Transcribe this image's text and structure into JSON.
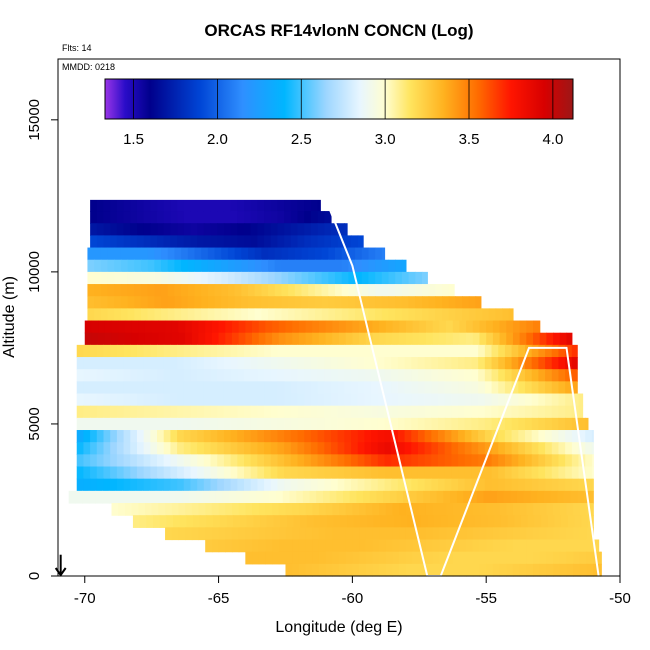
{
  "chart_data": {
    "type": "heatmap",
    "title": "ORCAS RF14vlonN CONCN (Log)",
    "xlabel": "Longitude (deg E)",
    "ylabel": "Altitude (m)",
    "xlim": [
      -71,
      -50
    ],
    "ylim": [
      0,
      17000
    ],
    "x_ticks": [
      -70,
      -65,
      -60,
      -55,
      -50
    ],
    "y_ticks": [
      0,
      5000,
      10000,
      15000
    ],
    "notes": {
      "flights": "Flts: 14",
      "date": "MMDD: 0218"
    },
    "colorbar": {
      "range": [
        1.33,
        4.12
      ],
      "ticks": [
        1.5,
        2.0,
        2.5,
        3.0,
        3.5,
        4.0
      ],
      "stops": [
        {
          "v": 1.33,
          "color": "#9a35e8"
        },
        {
          "v": 1.45,
          "color": "#2a0cc8"
        },
        {
          "v": 1.6,
          "color": "#00008c"
        },
        {
          "v": 1.9,
          "color": "#0046d6"
        },
        {
          "v": 2.15,
          "color": "#2f8fff"
        },
        {
          "v": 2.4,
          "color": "#00b6ff"
        },
        {
          "v": 2.65,
          "color": "#9ed6ff"
        },
        {
          "v": 2.85,
          "color": "#e8f6ff"
        },
        {
          "v": 3.0,
          "color": "#fffed0"
        },
        {
          "v": 3.15,
          "color": "#ffe45e"
        },
        {
          "v": 3.35,
          "color": "#ffb21f"
        },
        {
          "v": 3.55,
          "color": "#ff6d00"
        },
        {
          "v": 3.75,
          "color": "#ff1500"
        },
        {
          "v": 3.95,
          "color": "#d70000"
        },
        {
          "v": 4.12,
          "color": "#9d1717"
        }
      ]
    },
    "layers": [
      {
        "alt": 12200,
        "x0": -69.8,
        "x1": -61.2,
        "values": [
          1.6,
          1.55,
          1.5,
          1.5,
          1.55,
          1.6
        ]
      },
      {
        "alt": 11800,
        "x0": -69.8,
        "x1": -60.8,
        "values": [
          1.6,
          1.55,
          1.5,
          1.5,
          1.55,
          1.65
        ]
      },
      {
        "alt": 11400,
        "x0": -69.8,
        "x1": -60.2,
        "values": [
          1.7,
          1.6,
          1.55,
          1.6,
          1.7,
          1.8
        ]
      },
      {
        "alt": 11000,
        "x0": -69.8,
        "x1": -59.6,
        "values": [
          1.9,
          1.8,
          1.7,
          1.65,
          1.8,
          1.9
        ]
      },
      {
        "alt": 10600,
        "x0": -69.9,
        "x1": -58.8,
        "values": [
          2.2,
          2.2,
          2.0,
          1.8,
          1.9,
          2.1
        ]
      },
      {
        "alt": 10200,
        "x0": -69.9,
        "x1": -58.0,
        "values": [
          2.6,
          2.5,
          2.3,
          2.1,
          2.1,
          2.3
        ]
      },
      {
        "alt": 9800,
        "x0": -69.9,
        "x1": -57.2,
        "values": [
          3.0,
          2.95,
          2.8,
          2.6,
          2.4,
          2.6
        ]
      },
      {
        "alt": 9400,
        "x0": -69.9,
        "x1": -56.2,
        "values": [
          3.35,
          3.4,
          3.3,
          3.1,
          2.9,
          3.0
        ]
      },
      {
        "alt": 9000,
        "x0": -69.9,
        "x1": -55.2,
        "values": [
          3.3,
          3.4,
          3.3,
          3.25,
          3.3,
          3.4
        ]
      },
      {
        "alt": 8600,
        "x0": -69.9,
        "x1": -54.0,
        "values": [
          3.2,
          3.1,
          3.0,
          3.1,
          3.2,
          3.3
        ]
      },
      {
        "alt": 8200,
        "x0": -70.0,
        "x1": -53.0,
        "values": [
          3.95,
          3.9,
          3.6,
          3.4,
          3.2,
          3.5
        ]
      },
      {
        "alt": 7800,
        "x0": -70.0,
        "x1": -51.8,
        "values": [
          4.0,
          3.9,
          3.45,
          3.2,
          3.1,
          3.9
        ]
      },
      {
        "alt": 7400,
        "x0": -70.3,
        "x1": -51.6,
        "values": [
          3.2,
          3.1,
          3.0,
          3.0,
          3.0,
          3.7
        ]
      },
      {
        "alt": 7000,
        "x0": -70.3,
        "x1": -51.6,
        "values": [
          2.8,
          2.8,
          2.9,
          3.0,
          3.1,
          3.9
        ]
      },
      {
        "alt": 6600,
        "x0": -70.3,
        "x1": -51.6,
        "values": [
          2.85,
          2.8,
          2.85,
          2.9,
          3.0,
          3.6
        ]
      },
      {
        "alt": 6200,
        "x0": -70.3,
        "x1": -51.6,
        "values": [
          2.8,
          2.8,
          2.8,
          2.85,
          2.95,
          3.4
        ]
      },
      {
        "alt": 5800,
        "x0": -70.3,
        "x1": -51.4,
        "values": [
          2.85,
          2.8,
          2.8,
          2.85,
          2.9,
          3.1
        ]
      },
      {
        "alt": 5400,
        "x0": -70.3,
        "x1": -51.4,
        "values": [
          3.1,
          3.05,
          3.0,
          2.95,
          3.0,
          3.1
        ]
      },
      {
        "alt": 5000,
        "x0": -70.3,
        "x1": -51.2,
        "values": [
          2.9,
          2.9,
          2.95,
          3.0,
          3.1,
          3.3
        ]
      },
      {
        "alt": 4600,
        "x0": -70.3,
        "x1": -51.0,
        "values": [
          2.3,
          3.2,
          3.5,
          3.8,
          3.2,
          2.8
        ]
      },
      {
        "alt": 4200,
        "x0": -70.3,
        "x1": -51.0,
        "values": [
          2.4,
          3.1,
          3.4,
          3.85,
          3.4,
          2.9
        ]
      },
      {
        "alt": 3800,
        "x0": -70.3,
        "x1": -51.0,
        "values": [
          2.5,
          2.9,
          3.3,
          3.7,
          3.5,
          3.0
        ]
      },
      {
        "alt": 3400,
        "x0": -70.3,
        "x1": -51.0,
        "values": [
          2.4,
          2.8,
          3.2,
          3.3,
          3.3,
          3.0
        ]
      },
      {
        "alt": 3000,
        "x0": -70.3,
        "x1": -51.0,
        "values": [
          2.35,
          2.5,
          2.9,
          3.1,
          3.3,
          3.2
        ]
      },
      {
        "alt": 2600,
        "x0": -70.6,
        "x1": -51.0,
        "values": [
          2.9,
          2.9,
          3.0,
          3.2,
          3.4,
          3.3
        ]
      },
      {
        "alt": 2200,
        "x0": -69.0,
        "x1": -51.0,
        "values": [
          3.0,
          3.1,
          3.2,
          3.35,
          3.3,
          3.2
        ]
      },
      {
        "alt": 1800,
        "x0": -68.2,
        "x1": -51.0,
        "values": [
          3.1,
          3.2,
          3.3,
          3.35,
          3.3,
          3.2
        ]
      },
      {
        "alt": 1400,
        "x0": -67.0,
        "x1": -51.0,
        "values": [
          3.2,
          3.25,
          3.3,
          3.3,
          3.25,
          3.2
        ]
      },
      {
        "alt": 1000,
        "x0": -65.5,
        "x1": -50.8,
        "values": [
          3.25,
          3.3,
          3.3,
          3.25,
          3.2,
          3.2
        ]
      },
      {
        "alt": 600,
        "x0": -64.0,
        "x1": -50.7,
        "values": [
          3.3,
          3.3,
          3.25,
          3.2,
          3.2,
          3.25
        ]
      },
      {
        "alt": 200,
        "x0": -62.5,
        "x1": -50.7,
        "values": [
          3.3,
          3.25,
          3.2,
          3.2,
          3.25,
          3.3
        ]
      }
    ],
    "flight_track": [
      [
        -70.1,
        12400
      ],
      [
        -61.0,
        12400
      ],
      [
        -60.0,
        10200
      ],
      [
        -57.2,
        0
      ],
      [
        -56.7,
        0
      ],
      [
        -53.4,
        7500
      ],
      [
        -52.0,
        7500
      ],
      [
        -50.8,
        0
      ]
    ],
    "start_arrow": {
      "x": -70.9,
      "y_from": 700,
      "y_to": 0
    }
  }
}
